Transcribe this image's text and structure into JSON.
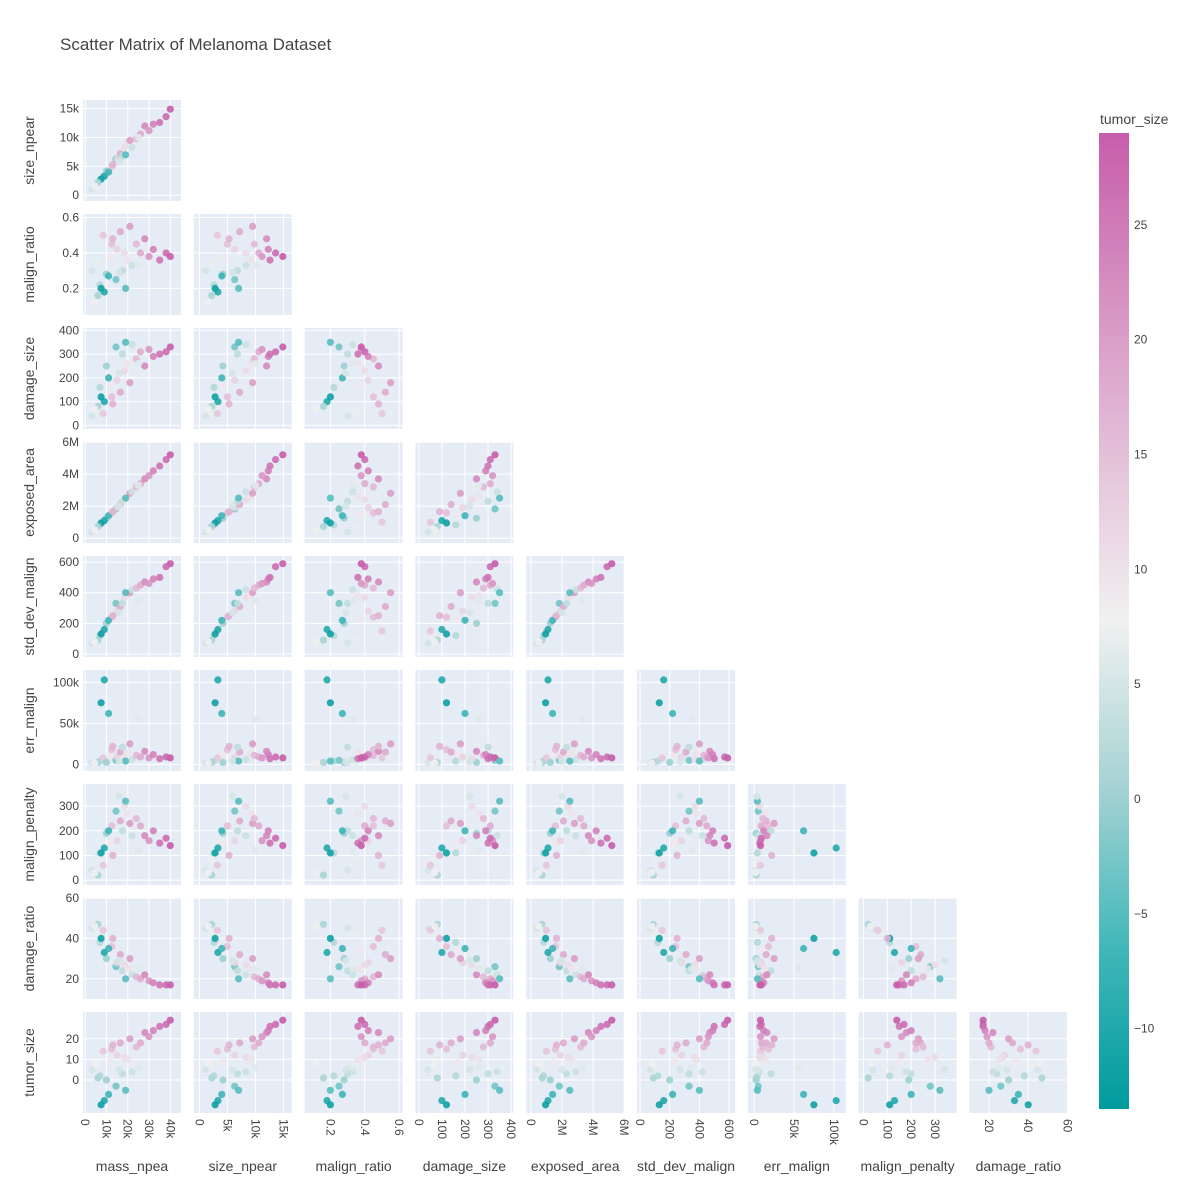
{
  "chart_data": {
    "type": "scatter",
    "kind": "scatter-matrix-lower-triangle",
    "title": "Scatter Matrix of Melanoma Dataset",
    "dimensions": [
      {
        "name": "mass_npea",
        "range": [
          -1000,
          45000
        ],
        "tickvals": [
          0,
          10000,
          20000,
          30000,
          40000
        ],
        "ticktext": [
          "0",
          "10k",
          "20k",
          "30k",
          "40k"
        ]
      },
      {
        "name": "size_npear",
        "range": [
          -1000,
          16500
        ],
        "tickvals": [
          0,
          5000,
          10000,
          15000
        ],
        "ticktext": [
          "0",
          "5k",
          "10k",
          "15k"
        ]
      },
      {
        "name": "malign_ratio",
        "range": [
          0.05,
          0.62
        ],
        "tickvals": [
          0.2,
          0.4,
          0.6
        ],
        "ticktext": [
          "0.2",
          "0.4",
          "0.6"
        ]
      },
      {
        "name": "damage_size",
        "range": [
          -15,
          410
        ],
        "tickvals": [
          0,
          100,
          200,
          300,
          400
        ],
        "ticktext": [
          "0",
          "100",
          "200",
          "300",
          "400"
        ]
      },
      {
        "name": "exposed_area",
        "range": [
          -300000,
          6000000
        ],
        "tickvals": [
          0,
          2000000,
          4000000,
          6000000
        ],
        "ticktext": [
          "0",
          "2M",
          "4M",
          "6M"
        ]
      },
      {
        "name": "std_dev_malign",
        "range": [
          -20,
          640
        ],
        "tickvals": [
          0,
          200,
          400,
          600
        ],
        "ticktext": [
          "0",
          "200",
          "400",
          "600"
        ]
      },
      {
        "name": "err_malign",
        "range": [
          -8000,
          115000
        ],
        "tickvals": [
          0,
          50000,
          100000
        ],
        "ticktext": [
          "0",
          "50k",
          "100k"
        ]
      },
      {
        "name": "malign_penalty",
        "range": [
          -20,
          390
        ],
        "tickvals": [
          0,
          100,
          200,
          300
        ],
        "ticktext": [
          "0",
          "100",
          "200",
          "300"
        ]
      },
      {
        "name": "damage_ratio",
        "range": [
          10,
          60
        ],
        "tickvals": [
          20,
          40,
          60
        ],
        "ticktext": [
          "20",
          "40",
          "60"
        ]
      },
      {
        "name": "tumor_size",
        "range": [
          -16,
          33
        ],
        "tickvals": [
          0,
          10,
          20
        ],
        "ticktext": [
          "0",
          "10",
          "20"
        ]
      }
    ],
    "colorbar": {
      "title": "tumor_size",
      "range": [
        -13.5,
        29
      ],
      "tickvals": [
        -10,
        -5,
        0,
        5,
        10,
        15,
        20,
        25
      ],
      "ticktext": [
        "−10",
        "−5",
        "0",
        "5",
        "10",
        "15",
        "20",
        "25"
      ],
      "colorscale": [
        "#009b9e",
        "#42b7b9",
        "#a7d3d4",
        "#f1f1f1",
        "#e4c1d9",
        "#d691c1",
        "#c75dab"
      ]
    },
    "points": [
      [
        3200,
        1100,
        0.3,
        40,
        390000,
        70,
        2000,
        40,
        45,
        5
      ],
      [
        5500,
        2100,
        0.35,
        60,
        700000,
        100,
        3000,
        90,
        42,
        7
      ],
      [
        7000,
        2600,
        0.22,
        160,
        820000,
        120,
        4000,
        110,
        38,
        2
      ],
      [
        8500,
        3200,
        0.5,
        50,
        1000000,
        150,
        8000,
        60,
        44,
        14
      ],
      [
        10000,
        4200,
        0.28,
        250,
        1250000,
        200,
        2500,
        190,
        30,
        0
      ],
      [
        12000,
        4300,
        0.38,
        170,
        1480000,
        230,
        12000,
        150,
        34,
        9
      ],
      [
        12500,
        5000,
        0.45,
        120,
        1580000,
        240,
        18000,
        220,
        36,
        15
      ],
      [
        14500,
        6300,
        0.25,
        330,
        1830000,
        330,
        5000,
        280,
        26,
        -3
      ],
      [
        15000,
        6300,
        0.42,
        190,
        1900000,
        280,
        9000,
        160,
        28,
        12
      ],
      [
        16500,
        7200,
        0.52,
        140,
        2100000,
        310,
        15000,
        240,
        32,
        18
      ],
      [
        17500,
        6800,
        0.3,
        300,
        2300000,
        330,
        21000,
        200,
        24,
        3
      ],
      [
        18500,
        8300,
        0.4,
        230,
        2400000,
        370,
        7000,
        300,
        27,
        11
      ],
      [
        20000,
        9200,
        0.36,
        260,
        2600000,
        380,
        14000,
        270,
        25,
        10
      ],
      [
        21000,
        9500,
        0.55,
        180,
        2800000,
        400,
        25000,
        230,
        30,
        20
      ],
      [
        22000,
        8300,
        0.33,
        340,
        2900000,
        420,
        6000,
        180,
        22,
        4
      ],
      [
        24000,
        9800,
        0.45,
        280,
        3200000,
        430,
        11000,
        250,
        21,
        16
      ],
      [
        26000,
        10600,
        0.4,
        310,
        3400000,
        450,
        9000,
        220,
        20,
        18
      ],
      [
        28000,
        12000,
        0.48,
        250,
        3700000,
        470,
        16000,
        180,
        22,
        23
      ],
      [
        30000,
        11200,
        0.38,
        320,
        3900000,
        460,
        8000,
        160,
        19,
        21
      ],
      [
        32000,
        12300,
        0.42,
        290,
        4200000,
        490,
        12000,
        200,
        18,
        24
      ],
      [
        35000,
        12600,
        0.36,
        300,
        4500000,
        500,
        7000,
        150,
        17,
        26
      ],
      [
        38000,
        13600,
        0.4,
        310,
        4900000,
        570,
        9000,
        170,
        17,
        27
      ],
      [
        40000,
        14900,
        0.38,
        330,
        5200000,
        590,
        8000,
        140,
        17,
        29
      ],
      [
        9000,
        3300,
        0.18,
        100,
        1100000,
        160,
        103000,
        130,
        33,
        -10
      ],
      [
        7500,
        2800,
        0.2,
        120,
        950000,
        130,
        75000,
        110,
        40,
        -12
      ],
      [
        11000,
        4000,
        0.27,
        200,
        1400000,
        220,
        62000,
        200,
        35,
        -7
      ],
      [
        6000,
        2200,
        0.16,
        80,
        720000,
        90,
        2500,
        20,
        47,
        1
      ],
      [
        4500,
        1600,
        0.12,
        70,
        520000,
        80,
        1500,
        30,
        46,
        8
      ],
      [
        19000,
        7000,
        0.2,
        350,
        2500000,
        400,
        4000,
        320,
        20,
        -5
      ],
      [
        13000,
        5300,
        0.48,
        90,
        1650000,
        250,
        22000,
        100,
        40,
        17
      ],
      [
        25000,
        10000,
        0.33,
        260,
        3300000,
        350,
        55000,
        120,
        25,
        6
      ],
      [
        16000,
        5900,
        0.29,
        220,
        2000000,
        270,
        3500,
        340,
        29,
        5
      ]
    ]
  }
}
